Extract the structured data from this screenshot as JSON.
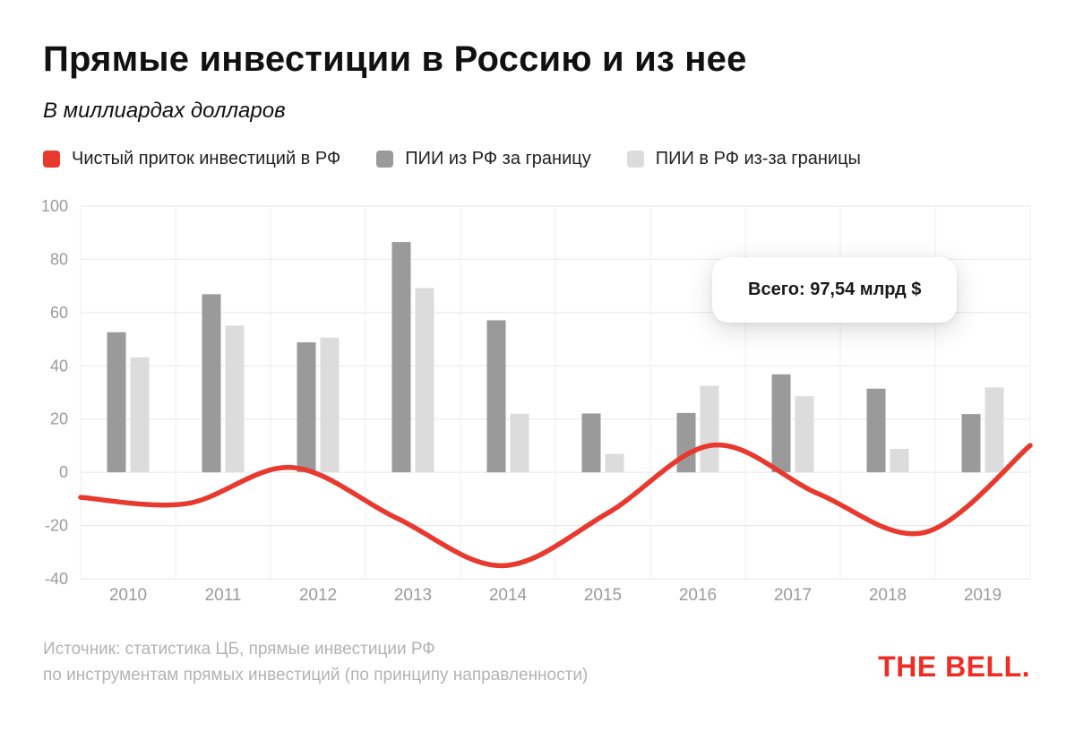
{
  "header": {
    "title": "Прямые инвестиции в Россию и из нее",
    "subtitle": "В миллиардах долларов"
  },
  "legend": [
    {
      "label": "Чистый приток инвестиций в РФ",
      "color": "#e8392f"
    },
    {
      "label": "ПИИ из РФ за границу",
      "color": "#9a9a9a"
    },
    {
      "label": "ПИИ в РФ из-за границы",
      "color": "#dcdcdc"
    }
  ],
  "tooltip": {
    "text": "Всего: 97,54 млрд $"
  },
  "footer": {
    "source_line1": "Источник: статистика ЦБ, прямые инвестиции РФ",
    "source_line2": "по инструментам прямых инвестиций (по принципу направленности)",
    "logo": "THE BELL."
  },
  "chart_data": {
    "type": "bar+line",
    "title": "Прямые инвестиции в Россию и из нее",
    "subtitle": "В миллиардах долларов",
    "categories": [
      "2010",
      "2011",
      "2012",
      "2013",
      "2014",
      "2015",
      "2016",
      "2017",
      "2018",
      "2019"
    ],
    "series": [
      {
        "name": "ПИИ из РФ за границу",
        "type": "bar",
        "color": "#9a9a9a",
        "values": [
          52.6,
          66.9,
          48.8,
          86.5,
          57.1,
          22.1,
          22.3,
          36.8,
          31.4,
          21.9
        ]
      },
      {
        "name": "ПИИ в РФ из-за границы",
        "type": "bar",
        "color": "#dcdcdc",
        "values": [
          43.2,
          55.1,
          50.6,
          69.2,
          22.0,
          6.9,
          32.5,
          28.6,
          8.8,
          31.9
        ]
      },
      {
        "name": "Чистый приток инвестиций в РФ",
        "type": "line",
        "color": "#e8392f",
        "values": [
          -9.4,
          -11.8,
          1.8,
          -17.3,
          -35.1,
          -15.2,
          10.2,
          -8.2,
          -22.6,
          10.1
        ]
      }
    ],
    "ylim": [
      -40,
      100
    ],
    "yticks": [
      100,
      80,
      60,
      40,
      20,
      0,
      -20,
      -40
    ],
    "xlabel": "",
    "ylabel": "",
    "grid": true,
    "legend_position": "top"
  }
}
